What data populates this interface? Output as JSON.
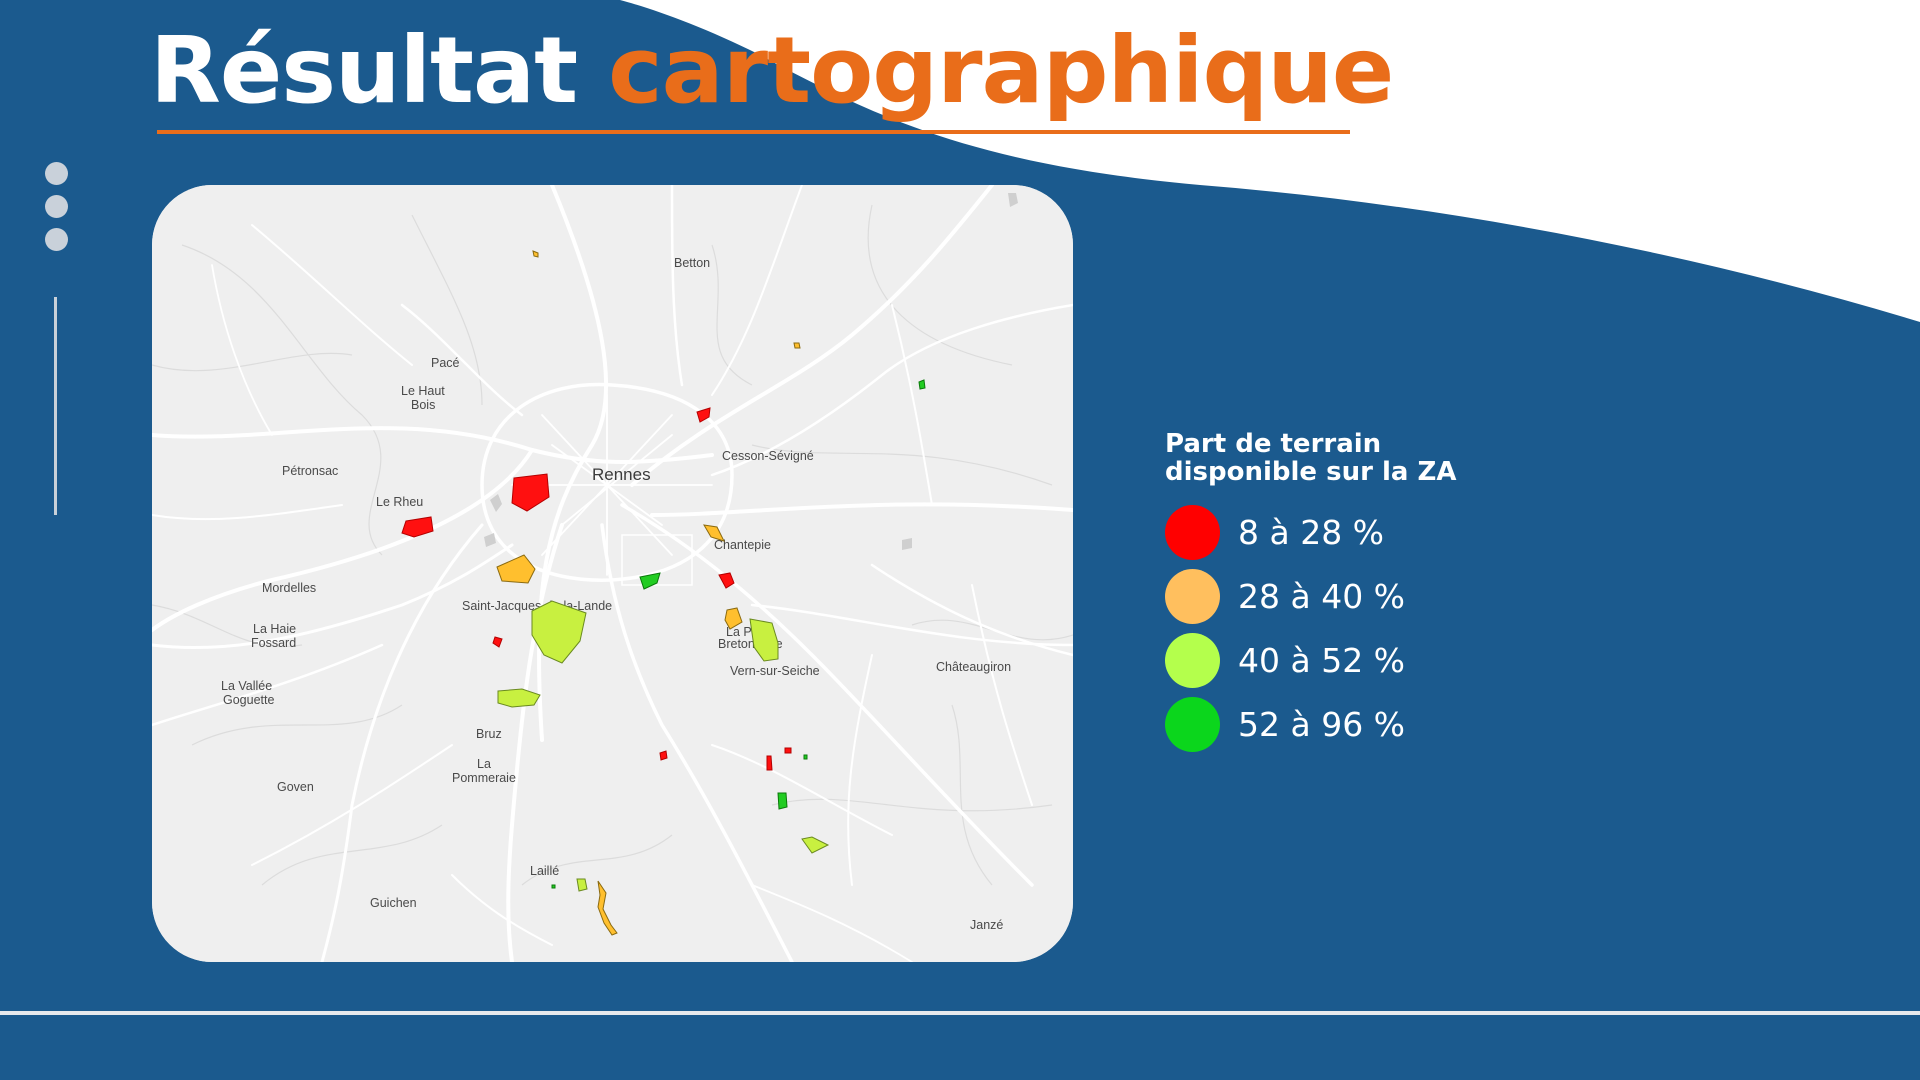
{
  "title": {
    "white_part": "Résultat",
    "orange_part": "cartographique"
  },
  "colors": {
    "background": "#1b5a8e",
    "accent": "#e96d1a",
    "wave": "#ffffff"
  },
  "map": {
    "main_city": "Rennes",
    "places": [
      "Betton",
      "Pacé",
      "Le Haut",
      "Bois",
      "Pétronsac",
      "Le Rheu",
      "Cesson-Sévigné",
      "Chantepie",
      "Mordelles",
      "Saint-Jacques-de-la-Lande",
      "La Haie",
      "Fossard",
      "La Petite",
      "Bretonnière",
      "Vern-sur-Seiche",
      "Châteaugiron",
      "La Vallée",
      "Goguette",
      "Bruz",
      "La",
      "Pommeraie",
      "Goven",
      "Laillé",
      "Guichen",
      "Janzé"
    ]
  },
  "legend": {
    "title": "Part de terrain disponible sur la ZA",
    "items": [
      {
        "label": "8 à 28 %",
        "color": "#ff0000"
      },
      {
        "label": "28 à 40 %",
        "color": "#ffbf5e"
      },
      {
        "label": "40 à 52 %",
        "color": "#b4ff4c"
      },
      {
        "label": "52 à 96 %",
        "color": "#0bd61c"
      }
    ]
  }
}
